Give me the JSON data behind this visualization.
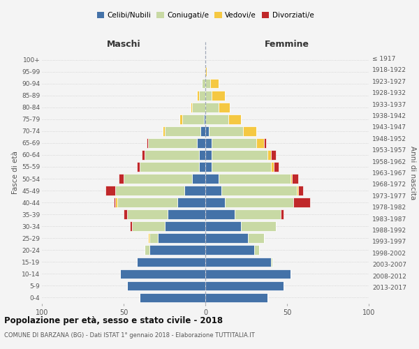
{
  "age_groups_bottom_to_top": [
    "0-4",
    "5-9",
    "10-14",
    "15-19",
    "20-24",
    "25-29",
    "30-34",
    "35-39",
    "40-44",
    "45-49",
    "50-54",
    "55-59",
    "60-64",
    "65-69",
    "70-74",
    "75-79",
    "80-84",
    "85-89",
    "90-94",
    "95-99",
    "100+"
  ],
  "birth_years_bottom_to_top": [
    "2013-2017",
    "2008-2012",
    "2003-2007",
    "1998-2002",
    "1993-1997",
    "1988-1992",
    "1983-1987",
    "1978-1982",
    "1973-1977",
    "1968-1972",
    "1963-1967",
    "1958-1962",
    "1953-1957",
    "1948-1952",
    "1943-1947",
    "1938-1942",
    "1933-1937",
    "1928-1932",
    "1923-1927",
    "1918-1922",
    "≤ 1917"
  ],
  "colors": {
    "celibe": "#4472a8",
    "coniugato": "#c8d9a4",
    "vedovo": "#f5c842",
    "divorziato": "#c0282a"
  },
  "maschi": {
    "celibe": [
      40,
      48,
      52,
      42,
      34,
      29,
      25,
      23,
      17,
      13,
      8,
      4,
      4,
      5,
      3,
      1,
      0,
      0,
      0,
      0,
      0
    ],
    "coniugato": [
      0,
      0,
      0,
      0,
      3,
      5,
      20,
      25,
      37,
      42,
      42,
      36,
      33,
      30,
      22,
      13,
      8,
      4,
      2,
      0,
      0
    ],
    "vedovo": [
      0,
      0,
      0,
      0,
      0,
      1,
      0,
      0,
      1,
      0,
      0,
      0,
      0,
      0,
      1,
      2,
      1,
      1,
      0,
      0,
      0
    ],
    "divorziato": [
      0,
      0,
      0,
      0,
      0,
      0,
      1,
      2,
      1,
      6,
      3,
      2,
      2,
      1,
      0,
      0,
      0,
      0,
      0,
      0,
      0
    ]
  },
  "femmine": {
    "nubile": [
      38,
      48,
      52,
      40,
      30,
      26,
      22,
      18,
      12,
      10,
      8,
      4,
      4,
      4,
      2,
      0,
      0,
      0,
      0,
      0,
      0
    ],
    "coniugata": [
      0,
      0,
      0,
      1,
      3,
      10,
      21,
      28,
      42,
      46,
      44,
      36,
      34,
      27,
      21,
      14,
      8,
      4,
      3,
      0,
      0
    ],
    "vedova": [
      0,
      0,
      0,
      0,
      0,
      0,
      0,
      0,
      0,
      1,
      1,
      2,
      2,
      5,
      8,
      8,
      7,
      8,
      5,
      1,
      0
    ],
    "divorziata": [
      0,
      0,
      0,
      0,
      0,
      0,
      0,
      2,
      10,
      3,
      4,
      3,
      3,
      1,
      0,
      0,
      0,
      0,
      0,
      0,
      0
    ]
  },
  "xlim": 100,
  "title": "Popolazione per età, sesso e stato civile - 2018",
  "subtitle": "COMUNE DI BARZANA (BG) - Dati ISTAT 1° gennaio 2018 - Elaborazione TUTTITALIA.IT",
  "ylabel": "Fasce di età",
  "ylabel_right": "Anni di nascita",
  "xlabel_maschi": "Maschi",
  "xlabel_femmine": "Femmine",
  "legend_labels": [
    "Celibi/Nubili",
    "Coniugati/e",
    "Vedovi/e",
    "Divorziati/e"
  ],
  "bg_color": "#f4f4f4",
  "bar_edgecolor": "#ffffff",
  "bar_linewidth": 0.5
}
